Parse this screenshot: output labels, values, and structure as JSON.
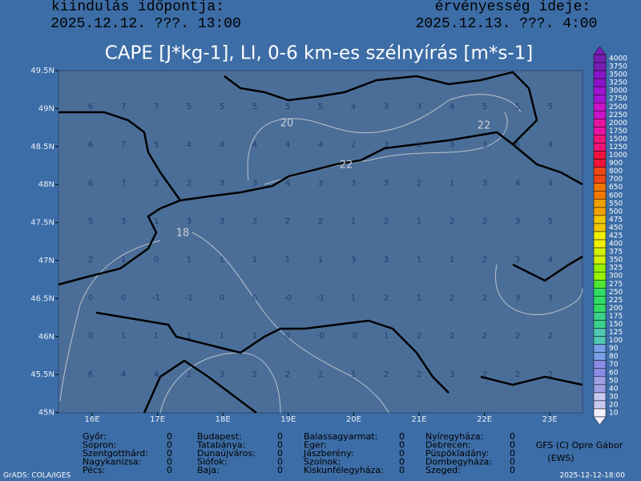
{
  "header": {
    "run_label": "kiindulás időpontja:",
    "run_time": "2025.12.12. ???. 13:00",
    "valid_label": "érvényesség ideje:",
    "valid_time": "2025.12.13. ???. 4:00"
  },
  "title": "CAPE [J*kg-1], LI, 0-6 km-es szélnyírás [m*s-1]",
  "lat_labels": [
    "49.5N",
    "49N",
    "48.5N",
    "48N",
    "47.5N",
    "47N",
    "46.5N",
    "46N",
    "45.5N",
    "45N"
  ],
  "lon_labels": [
    "16E",
    "17E",
    "18E",
    "19E",
    "20E",
    "21E",
    "22E",
    "23E"
  ],
  "contour_labels": [
    "20",
    "22",
    "22",
    "18"
  ],
  "li_grid": [
    [
      "6",
      "7",
      "7",
      "5",
      "5",
      "5",
      "5",
      "5",
      "4",
      "3",
      "3",
      "4",
      "5",
      "5",
      "5"
    ],
    [
      "6",
      "7",
      "5",
      "4",
      "4",
      "4",
      "4",
      "4",
      "2",
      "3",
      "3",
      "3",
      "3",
      "6",
      "4"
    ],
    [
      "6",
      "7",
      "2",
      "2",
      "3",
      "3",
      "4",
      "3",
      "3",
      "3",
      "2",
      "1",
      "3",
      "4",
      "4"
    ],
    [
      "5",
      "3",
      "1",
      "3",
      "3",
      "3",
      "2",
      "2",
      "1",
      "2",
      "1",
      "2",
      "2",
      "3",
      "5"
    ],
    [
      "2",
      "1",
      "0",
      "1",
      "1",
      "1",
      "1",
      "1",
      "3",
      "3",
      "1",
      "1",
      "2",
      "3",
      "4"
    ],
    [
      "0",
      "0",
      "-1",
      "-1",
      "0",
      "0",
      "-0",
      "-1",
      "1",
      "2",
      "1",
      "2",
      "2",
      "3",
      "3"
    ],
    [
      "0",
      "1",
      "1",
      "1",
      "1",
      "1",
      "0",
      "-0",
      "-0",
      "1",
      "2",
      "2",
      "2",
      "2",
      "2"
    ],
    [
      "6",
      "4",
      "4",
      "2",
      "3",
      "2",
      "2",
      "2",
      "1",
      "2",
      "2",
      "3",
      "2",
      "2",
      "2"
    ]
  ],
  "colorbar_labels": [
    "4000",
    "3750",
    "3500",
    "3250",
    "3000",
    "2750",
    "2500",
    "2250",
    "2000",
    "1750",
    "1500",
    "1250",
    "1000",
    "900",
    "800",
    "700",
    "650",
    "600",
    "550",
    "500",
    "475",
    "450",
    "425",
    "400",
    "375",
    "350",
    "325",
    "300",
    "275",
    "250",
    "225",
    "200",
    "175",
    "150",
    "125",
    "100",
    "90",
    "80",
    "70",
    "60",
    "50",
    "40",
    "30",
    "20",
    "10"
  ],
  "stations": [
    [
      [
        "Győr:",
        "0"
      ],
      [
        "Sopron:",
        "0"
      ],
      [
        "Szentgotthárd:",
        "0"
      ],
      [
        "Nagykanizsa:",
        "0"
      ],
      [
        "Pécs:",
        "0"
      ]
    ],
    [
      [
        "Budapest:",
        "0"
      ],
      [
        "Tatabánya:",
        "0"
      ],
      [
        "Dunaújváros:",
        "0"
      ],
      [
        "Siófok:",
        "0"
      ],
      [
        "Baja:",
        "0"
      ]
    ],
    [
      [
        "Balassagyarmat:",
        "0"
      ],
      [
        "Eger:",
        "0"
      ],
      [
        "Jászberény:",
        "0"
      ],
      [
        "Szolnok:",
        "0"
      ],
      [
        "Kiskunfélegyháza:",
        "0"
      ]
    ],
    [
      [
        "Nyíregyháza:",
        "0"
      ],
      [
        "Debrecen:",
        "0"
      ],
      [
        "Püspökladány:",
        "0"
      ],
      [
        "Dombegyháza:",
        "0"
      ],
      [
        "Szeged:",
        "0"
      ]
    ]
  ],
  "credits": {
    "author": "GFS (C) Opre Gábor",
    "org": "(EWS)",
    "grads": "GrADS: COLA/IGES",
    "stamp": "2025-12-12-18:00"
  }
}
